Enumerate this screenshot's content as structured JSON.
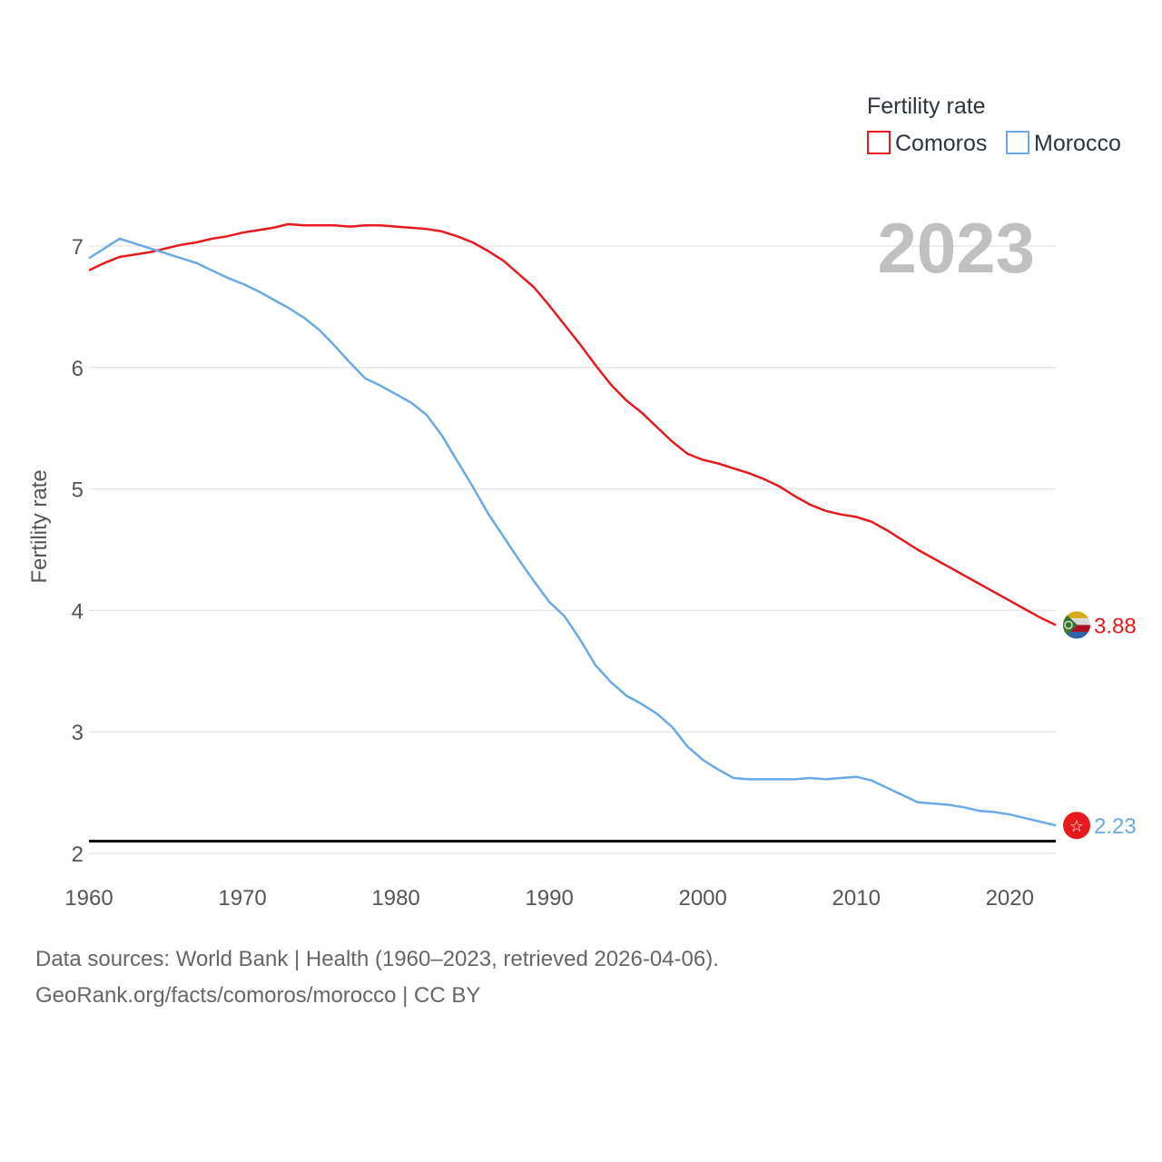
{
  "chart_data": {
    "type": "line",
    "ylabel": "Fertility rate",
    "xlabel": "",
    "xlim": [
      1960,
      2023
    ],
    "ylim": [
      2,
      7.5
    ],
    "x_ticks": [
      1960,
      1970,
      1980,
      1990,
      2000,
      2010,
      2020
    ],
    "y_ticks": [
      2,
      3,
      4,
      5,
      6,
      7
    ],
    "year_label": "2023",
    "reference_line": {
      "value": 2.1
    },
    "legend": {
      "title": "Fertility rate",
      "position": "top-right"
    },
    "x": [
      1960,
      1961,
      1962,
      1963,
      1964,
      1965,
      1966,
      1967,
      1968,
      1969,
      1970,
      1971,
      1972,
      1973,
      1974,
      1975,
      1976,
      1977,
      1978,
      1979,
      1980,
      1981,
      1982,
      1983,
      1984,
      1985,
      1986,
      1987,
      1988,
      1989,
      1990,
      1991,
      1992,
      1993,
      1994,
      1995,
      1996,
      1997,
      1998,
      1999,
      2000,
      2001,
      2002,
      2003,
      2004,
      2005,
      2006,
      2007,
      2008,
      2009,
      2010,
      2011,
      2012,
      2013,
      2014,
      2015,
      2016,
      2017,
      2018,
      2019,
      2020,
      2021,
      2022,
      2023
    ],
    "series": [
      {
        "name": "Comoros",
        "color": "#e8191c",
        "end_label": "3.88",
        "flag": "comoros",
        "values": [
          6.8,
          6.86,
          6.91,
          6.93,
          6.95,
          6.98,
          7.01,
          7.03,
          7.06,
          7.08,
          7.11,
          7.13,
          7.15,
          7.18,
          7.17,
          7.17,
          7.17,
          7.16,
          7.17,
          7.17,
          7.16,
          7.15,
          7.14,
          7.12,
          7.08,
          7.03,
          6.96,
          6.88,
          6.77,
          6.66,
          6.51,
          6.35,
          6.19,
          6.02,
          5.86,
          5.73,
          5.63,
          5.51,
          5.39,
          5.29,
          5.24,
          5.21,
          5.17,
          5.13,
          5.08,
          5.02,
          4.94,
          4.87,
          4.82,
          4.79,
          4.77,
          4.73,
          4.66,
          4.58,
          4.5,
          4.43,
          4.36,
          4.29,
          4.22,
          4.15,
          4.08,
          4.01,
          3.94,
          3.88
        ]
      },
      {
        "name": "Morocco",
        "color": "#6aa9e6",
        "end_label": "2.23",
        "flag": "morocco",
        "values": [
          6.9,
          6.98,
          7.06,
          7.02,
          6.98,
          6.94,
          6.9,
          6.86,
          6.8,
          6.74,
          6.69,
          6.63,
          6.56,
          6.49,
          6.41,
          6.31,
          6.18,
          6.04,
          5.91,
          5.85,
          5.78,
          5.71,
          5.61,
          5.44,
          5.23,
          5.02,
          4.8,
          4.61,
          4.42,
          4.24,
          4.07,
          3.95,
          3.76,
          3.55,
          3.41,
          3.3,
          3.23,
          3.15,
          3.04,
          2.88,
          2.77,
          2.69,
          2.62,
          2.61,
          2.61,
          2.61,
          2.61,
          2.62,
          2.61,
          2.62,
          2.63,
          2.6,
          2.54,
          2.48,
          2.42,
          2.41,
          2.4,
          2.38,
          2.35,
          2.34,
          2.32,
          2.29,
          2.26,
          2.23
        ]
      }
    ]
  },
  "source": {
    "line1": "Data sources: World Bank | Health (1960–2023, retrieved 2026-04-06).",
    "line2": "GeoRank.org/facts/comoros/morocco | CC BY"
  }
}
